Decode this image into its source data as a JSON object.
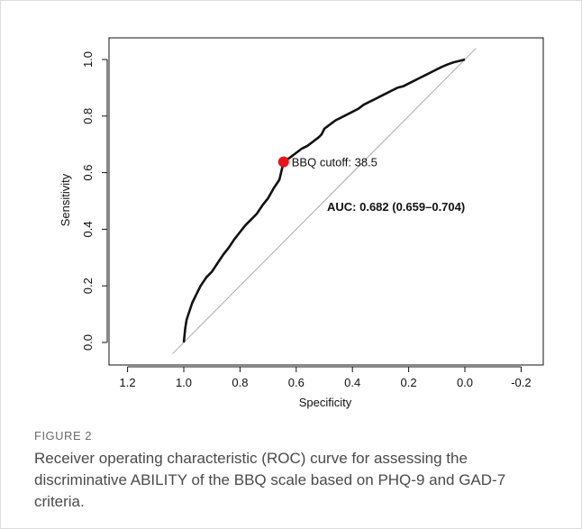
{
  "chart_data": {
    "type": "line",
    "xlabel": "Specificity",
    "ylabel": "Sensitivity",
    "xlim": [
      1.25,
      -0.25
    ],
    "ylim": [
      0.0,
      1.0
    ],
    "x_reversed": true,
    "x_ticks": [
      "1.2",
      "1.0",
      "0.8",
      "0.6",
      "0.4",
      "0.2",
      "0.0",
      "-0.2"
    ],
    "x_tick_values": [
      1.2,
      1.0,
      0.8,
      0.6,
      0.4,
      0.2,
      0.0,
      -0.2
    ],
    "y_ticks": [
      "0.0",
      "0.2",
      "0.4",
      "0.6",
      "0.8",
      "1.0"
    ],
    "y_tick_values": [
      0.0,
      0.2,
      0.4,
      0.6,
      0.8,
      1.0
    ],
    "grid": false,
    "series": [
      {
        "x": [
          1.0,
          0.995,
          0.99,
          0.98,
          0.97,
          0.955,
          0.94,
          0.92,
          0.9,
          0.88,
          0.86,
          0.84,
          0.82,
          0.8,
          0.78,
          0.76,
          0.74,
          0.72,
          0.7,
          0.68,
          0.66,
          0.645,
          0.62,
          0.6,
          0.58,
          0.56,
          0.54,
          0.52,
          0.51,
          0.5,
          0.48,
          0.46,
          0.44,
          0.42,
          0.4,
          0.38,
          0.36,
          0.34,
          0.32,
          0.3,
          0.28,
          0.26,
          0.24,
          0.22,
          0.2,
          0.18,
          0.16,
          0.14,
          0.12,
          0.1,
          0.08,
          0.06,
          0.04,
          0.02,
          0.0
        ],
        "y": [
          0.0,
          0.05,
          0.08,
          0.11,
          0.14,
          0.17,
          0.2,
          0.23,
          0.25,
          0.28,
          0.31,
          0.335,
          0.365,
          0.39,
          0.415,
          0.435,
          0.455,
          0.485,
          0.51,
          0.545,
          0.575,
          0.638,
          0.655,
          0.67,
          0.685,
          0.695,
          0.71,
          0.725,
          0.735,
          0.755,
          0.77,
          0.785,
          0.795,
          0.805,
          0.815,
          0.825,
          0.84,
          0.85,
          0.86,
          0.87,
          0.88,
          0.89,
          0.9,
          0.905,
          0.915,
          0.925,
          0.935,
          0.945,
          0.955,
          0.965,
          0.975,
          0.983,
          0.99,
          0.995,
          1.0
        ]
      }
    ],
    "reference_line": {
      "from": [
        1.0,
        0.0
      ],
      "to": [
        0.0,
        1.0
      ]
    },
    "cutoff_point": {
      "x": 0.645,
      "y": 0.638,
      "label": "BBQ cutoff: 38.5",
      "color": "#e8151b"
    },
    "annotation": "AUC: 0.682 (0.659–0.704)"
  },
  "caption": {
    "label": "FIGURE 2",
    "text": "Receiver operating characteristic (ROC) curve for assessing the discriminative ABILITY of the BBQ scale based on PHQ-9 and GAD-7 criteria."
  }
}
